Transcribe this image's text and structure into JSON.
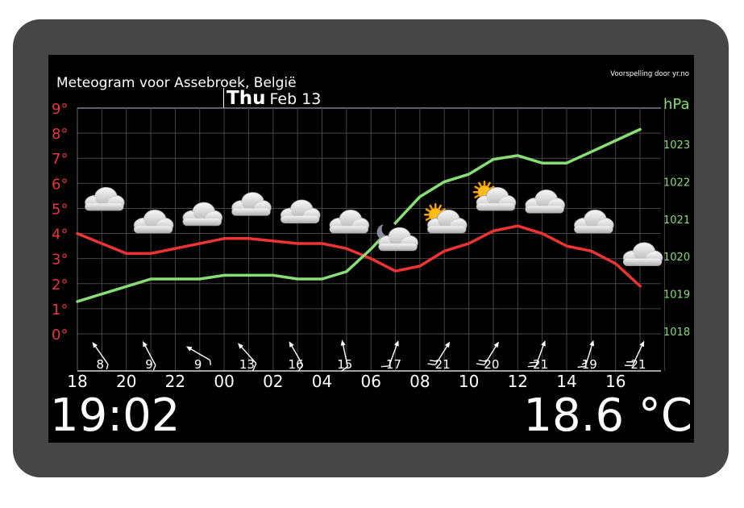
{
  "header": {
    "title": "Meteogram voor Assebroek, België",
    "credit": "Voorspelling door yr.no",
    "day_name": "Thu",
    "day_date": "Feb 13"
  },
  "chart_data": {
    "type": "line",
    "x_tick_labels": [
      "18",
      "20",
      "22",
      "00",
      "02",
      "04",
      "06",
      "08",
      "10",
      "12",
      "14",
      "16"
    ],
    "temperature_axis": {
      "ticks": [
        "9°",
        "8°",
        "7°",
        "6°",
        "5°",
        "4°",
        "3°",
        "2°",
        "1°",
        "0°"
      ],
      "ylim": [
        0,
        9
      ]
    },
    "pressure_axis": {
      "label": "hPa",
      "ticks": [
        "1023",
        "1022",
        "1021",
        "1020",
        "1019",
        "1018"
      ],
      "ylim": [
        1017.8,
        1024
      ]
    },
    "series": [
      {
        "color": "#ee3333",
        "hours": [
          18,
          19,
          20,
          21,
          22,
          23,
          0,
          1,
          2,
          3,
          4,
          5,
          6,
          7,
          8,
          9,
          10,
          11,
          12,
          13,
          14,
          15,
          16,
          17
        ],
        "values": [
          4.0,
          3.6,
          3.2,
          3.2,
          3.4,
          3.6,
          3.8,
          3.8,
          3.7,
          3.6,
          3.6,
          3.4,
          3.0,
          2.5,
          2.7,
          3.3,
          3.6,
          4.1,
          4.3,
          4.0,
          3.5,
          3.3,
          2.8,
          1.9
        ]
      },
      {
        "color": "#88dd77",
        "hours": [
          18,
          20,
          21,
          22,
          23,
          0,
          1,
          2,
          3,
          4,
          5,
          6,
          7,
          8,
          9,
          10,
          11,
          12,
          13,
          14,
          15,
          16,
          17
        ],
        "values": [
          1018.8,
          1019.2,
          1019.4,
          1019.4,
          1019.4,
          1019.5,
          1019.5,
          1019.5,
          1019.4,
          1019.4,
          1019.6,
          1020.2,
          1020.9,
          1021.6,
          1022.0,
          1022.2,
          1022.6,
          1022.7,
          1022.5,
          1022.5,
          1022.8,
          1023.1,
          1023.4
        ]
      }
    ],
    "wind": [
      {
        "hour": 18.8,
        "label": "8",
        "dir": "NNW",
        "angle": 145,
        "barbs": 1,
        "full_barbs": 0
      },
      {
        "hour": 20.8,
        "label": "9",
        "dir": "NNW",
        "angle": 152,
        "barbs": 1,
        "full_barbs": 0
      },
      {
        "hour": 22.8,
        "label": "9",
        "dir": "NW",
        "angle": 120,
        "barbs": 1,
        "full_barbs": 0
      },
      {
        "hour": 0.8,
        "label": "13",
        "dir": "NW",
        "angle": 138,
        "barbs": 1,
        "full_barbs": 1
      },
      {
        "hour": 2.8,
        "label": "16",
        "dir": "NNW",
        "angle": 150,
        "barbs": 1,
        "full_barbs": 1
      },
      {
        "hour": 4.8,
        "label": "15",
        "dir": "N",
        "angle": 168,
        "barbs": 1,
        "full_barbs": 1
      },
      {
        "hour": 6.8,
        "label": "17",
        "dir": "S",
        "angle": 200,
        "barbs": 1,
        "full_barbs": 1
      },
      {
        "hour": 8.8,
        "label": "21",
        "dir": "SW",
        "angle": 212,
        "barbs": 2,
        "full_barbs": 2
      },
      {
        "hour": 10.8,
        "label": "20",
        "dir": "SW",
        "angle": 212,
        "barbs": 2,
        "full_barbs": 2
      },
      {
        "hour": 12.8,
        "label": "21",
        "dir": "SSW",
        "angle": 200,
        "barbs": 2,
        "full_barbs": 2
      },
      {
        "hour": 14.8,
        "label": "19",
        "dir": "SSW",
        "angle": 197,
        "barbs": 2,
        "full_barbs": 1
      },
      {
        "hour": 16.8,
        "label": "21",
        "dir": "SSW",
        "angle": 205,
        "barbs": 2,
        "full_barbs": 2
      }
    ],
    "weather_icons": [
      {
        "hour": 19.1,
        "type": "cloudy",
        "level": 5.2
      },
      {
        "hour": 21.1,
        "type": "cloudy",
        "level": 4.3
      },
      {
        "hour": 23.1,
        "type": "cloudy",
        "level": 4.6
      },
      {
        "hour": 1.1,
        "type": "cloudy",
        "level": 5.0
      },
      {
        "hour": 3.1,
        "type": "cloudy",
        "level": 4.7
      },
      {
        "hour": 5.1,
        "type": "cloudy",
        "level": 4.3
      },
      {
        "hour": 7.1,
        "type": "partly-cloudy-night",
        "level": 3.6
      },
      {
        "hour": 9.1,
        "type": "partly-cloudy-day",
        "level": 4.3
      },
      {
        "hour": 11.1,
        "type": "partly-cloudy-day",
        "level": 5.2
      },
      {
        "hour": 13.1,
        "type": "cloudy",
        "level": 5.1
      },
      {
        "hour": 15.1,
        "type": "cloudy",
        "level": 4.3
      },
      {
        "hour": 17.1,
        "type": "cloudy",
        "level": 3.0
      }
    ],
    "colors": {
      "temperature_axis": "#e8343c",
      "pressure_axis": "#88dd77",
      "grid": "#444444",
      "ticks": "#ffffff"
    }
  },
  "footer": {
    "clock": "19:02",
    "current_temp": "18.6 °C"
  }
}
